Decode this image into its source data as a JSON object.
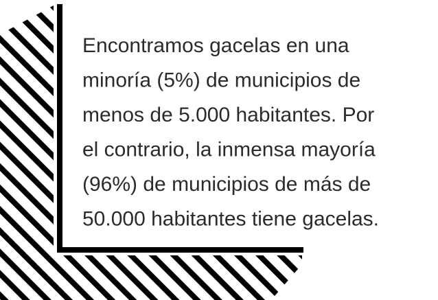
{
  "text": {
    "lines": [
      "Encontramos gacelas en una",
      "minoría (5%) de municipios de",
      "menos de 5.000 habitantes. Por",
      "el contrario, la inmensa mayoría",
      "(96%) de municipios de más de",
      "50.000 habitantes tiene gacelas."
    ]
  }
}
